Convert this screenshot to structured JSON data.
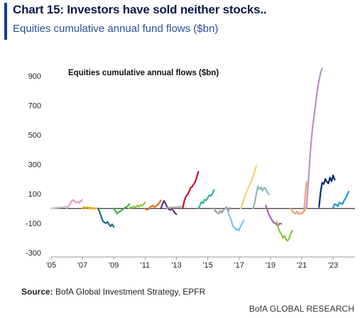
{
  "header": {
    "title": "Chart 15: Investors have sold neither stocks..",
    "subtitle": "Equities cumulative annual fund flows ($bn)"
  },
  "footer": {
    "source_label": "Source:",
    "source_text": "BofA Global Investment Strategy, EPFR",
    "brand": "BofA GLOBAL RESEARCH"
  },
  "colors": {
    "accent": "#0d3f99",
    "zero_line": "#222222"
  },
  "chart_data": {
    "type": "line",
    "title": "Equities cumulative annual flows ($bn)",
    "xlabel": "",
    "ylabel": "",
    "xlim": [
      2005,
      2024.4
    ],
    "ylim": [
      -300,
      1000
    ],
    "x_ticks": [
      "'05",
      "'07",
      "'09",
      "'11",
      "'13",
      "'15",
      "'17",
      "'19",
      "'21",
      "'23"
    ],
    "x_tick_values": [
      2005,
      2007,
      2009,
      2011,
      2013,
      2015,
      2017,
      2019,
      2021,
      2023
    ],
    "y_ticks": [
      -300,
      -100,
      100,
      300,
      500,
      700,
      900
    ],
    "grid": false,
    "series": [
      {
        "color": "#c8c8c8",
        "points": [
          [
            2005.0,
            0
          ],
          [
            2005.1,
            3
          ],
          [
            2005.2,
            2
          ],
          [
            2005.3,
            6
          ],
          [
            2005.4,
            4
          ],
          [
            2005.5,
            8
          ],
          [
            2005.6,
            5
          ],
          [
            2005.7,
            10
          ],
          [
            2005.8,
            9
          ],
          [
            2005.9,
            12
          ],
          [
            2006.0,
            8
          ]
        ]
      },
      {
        "color": "#e896c4",
        "points": [
          [
            2006.0,
            0
          ],
          [
            2006.1,
            15
          ],
          [
            2006.2,
            30
          ],
          [
            2006.3,
            48
          ],
          [
            2006.4,
            58
          ],
          [
            2006.5,
            50
          ],
          [
            2006.6,
            40
          ],
          [
            2006.7,
            45
          ],
          [
            2006.8,
            38
          ],
          [
            2006.9,
            52
          ],
          [
            2007.0,
            58
          ]
        ]
      },
      {
        "color": "#f0a800",
        "points": [
          [
            2007.0,
            0
          ],
          [
            2007.1,
            10
          ],
          [
            2007.2,
            3
          ],
          [
            2007.3,
            8
          ],
          [
            2007.4,
            2
          ],
          [
            2007.5,
            6
          ],
          [
            2007.6,
            0
          ],
          [
            2007.7,
            4
          ],
          [
            2007.8,
            -2
          ],
          [
            2007.9,
            2
          ],
          [
            2008.0,
            -2
          ]
        ]
      },
      {
        "color": "#1d6b7a",
        "points": [
          [
            2008.0,
            0
          ],
          [
            2008.1,
            -25
          ],
          [
            2008.2,
            -55
          ],
          [
            2008.3,
            -85
          ],
          [
            2008.4,
            -95
          ],
          [
            2008.5,
            -100
          ],
          [
            2008.6,
            -90
          ],
          [
            2008.7,
            -110
          ],
          [
            2008.8,
            -120
          ],
          [
            2008.9,
            -108
          ],
          [
            2009.0,
            -125
          ]
        ]
      },
      {
        "color": "#3cb44b",
        "points": [
          [
            2009.0,
            0
          ],
          [
            2009.1,
            -15
          ],
          [
            2009.2,
            -35
          ],
          [
            2009.3,
            -25
          ],
          [
            2009.4,
            -20
          ],
          [
            2009.5,
            -10
          ],
          [
            2009.6,
            -5
          ],
          [
            2009.7,
            5
          ],
          [
            2009.8,
            8
          ],
          [
            2009.9,
            18
          ],
          [
            2010.0,
            30
          ]
        ]
      },
      {
        "color": "#8cc63f",
        "points": [
          [
            2010.0,
            0
          ],
          [
            2010.1,
            10
          ],
          [
            2010.2,
            5
          ],
          [
            2010.3,
            15
          ],
          [
            2010.4,
            8
          ],
          [
            2010.5,
            20
          ],
          [
            2010.6,
            12
          ],
          [
            2010.7,
            25
          ],
          [
            2010.8,
            18
          ],
          [
            2010.9,
            30
          ],
          [
            2011.0,
            42
          ]
        ]
      },
      {
        "color": "#e86a10",
        "points": [
          [
            2011.0,
            0
          ],
          [
            2011.1,
            -8
          ],
          [
            2011.2,
            -5
          ],
          [
            2011.3,
            8
          ],
          [
            2011.4,
            15
          ],
          [
            2011.5,
            20
          ],
          [
            2011.6,
            10
          ],
          [
            2011.7,
            15
          ],
          [
            2011.8,
            25
          ],
          [
            2011.9,
            38
          ],
          [
            2012.0,
            55
          ]
        ]
      },
      {
        "color": "#6a2c8a",
        "points": [
          [
            2012.0,
            0
          ],
          [
            2012.1,
            25
          ],
          [
            2012.2,
            52
          ],
          [
            2012.3,
            35
          ],
          [
            2012.4,
            10
          ],
          [
            2012.5,
            -5
          ],
          [
            2012.6,
            -10
          ],
          [
            2012.7,
            -3
          ],
          [
            2012.8,
            -15
          ],
          [
            2012.9,
            -30
          ],
          [
            2013.0,
            -40
          ]
        ]
      },
      {
        "color": "#b0b0b0",
        "points": [
          [
            2012.4,
            0
          ],
          [
            2012.5,
            8
          ],
          [
            2012.6,
            3
          ],
          [
            2012.7,
            10
          ],
          [
            2012.8,
            5
          ],
          [
            2012.9,
            10
          ],
          [
            2013.0,
            7
          ],
          [
            2013.1,
            12
          ],
          [
            2013.2,
            8
          ],
          [
            2013.3,
            15
          ],
          [
            2013.4,
            8
          ]
        ]
      },
      {
        "color": "#c8102e",
        "points": [
          [
            2013.4,
            0
          ],
          [
            2013.5,
            50
          ],
          [
            2013.6,
            80
          ],
          [
            2013.7,
            95
          ],
          [
            2013.8,
            112
          ],
          [
            2013.9,
            140
          ],
          [
            2014.0,
            148
          ],
          [
            2014.1,
            165
          ],
          [
            2014.2,
            180
          ],
          [
            2014.3,
            215
          ],
          [
            2014.4,
            250
          ]
        ]
      },
      {
        "color": "#2bb5a0",
        "points": [
          [
            2014.4,
            0
          ],
          [
            2014.5,
            20
          ],
          [
            2014.6,
            45
          ],
          [
            2014.7,
            35
          ],
          [
            2014.8,
            60
          ],
          [
            2014.9,
            55
          ],
          [
            2015.0,
            72
          ],
          [
            2015.1,
            90
          ],
          [
            2015.2,
            85
          ],
          [
            2015.3,
            100
          ],
          [
            2015.4,
            125
          ]
        ]
      },
      {
        "color": "#9aa0a6",
        "points": [
          [
            2015.4,
            0
          ],
          [
            2015.5,
            -20
          ],
          [
            2015.6,
            -28
          ],
          [
            2015.7,
            -35
          ],
          [
            2015.8,
            -15
          ],
          [
            2015.9,
            -30
          ],
          [
            2016.0,
            -10
          ],
          [
            2016.1,
            0
          ],
          [
            2016.2,
            10
          ],
          [
            2016.3,
            -20
          ],
          [
            2016.4,
            5
          ]
        ]
      },
      {
        "color": "#7dc4e4",
        "points": [
          [
            2016.3,
            -30
          ],
          [
            2016.4,
            -55
          ],
          [
            2016.5,
            -80
          ],
          [
            2016.6,
            -120
          ],
          [
            2016.7,
            -130
          ],
          [
            2016.8,
            -145
          ],
          [
            2016.9,
            -140
          ],
          [
            2017.0,
            -150
          ],
          [
            2017.1,
            -120
          ],
          [
            2017.2,
            -100
          ],
          [
            2017.3,
            -80
          ]
        ]
      },
      {
        "color": "#f3d27a",
        "points": [
          [
            2017.1,
            0
          ],
          [
            2017.2,
            30
          ],
          [
            2017.3,
            60
          ],
          [
            2017.4,
            90
          ],
          [
            2017.5,
            120
          ],
          [
            2017.6,
            145
          ],
          [
            2017.7,
            165
          ],
          [
            2017.8,
            190
          ],
          [
            2017.9,
            220
          ],
          [
            2018.0,
            255
          ],
          [
            2018.1,
            290
          ]
        ]
      },
      {
        "color": "#8fb8b8",
        "points": [
          [
            2017.9,
            0
          ],
          [
            2018.0,
            40
          ],
          [
            2018.1,
            100
          ],
          [
            2018.2,
            150
          ],
          [
            2018.3,
            130
          ],
          [
            2018.4,
            145
          ],
          [
            2018.5,
            120
          ],
          [
            2018.6,
            140
          ],
          [
            2018.7,
            135
          ],
          [
            2018.8,
            110
          ],
          [
            2018.9,
            95
          ]
        ]
      },
      {
        "color": "#b05bb0",
        "points": [
          [
            2018.7,
            20
          ],
          [
            2018.8,
            -10
          ],
          [
            2018.9,
            -40
          ],
          [
            2019.0,
            -60
          ],
          [
            2019.1,
            -80
          ],
          [
            2019.2,
            -95
          ],
          [
            2019.3,
            -100
          ],
          [
            2019.4,
            -110
          ],
          [
            2019.5,
            -115
          ],
          [
            2019.6,
            -100
          ],
          [
            2019.7,
            -105
          ]
        ]
      },
      {
        "color": "#8cc63f",
        "points": [
          [
            2019.4,
            -90
          ],
          [
            2019.5,
            -130
          ],
          [
            2019.6,
            -160
          ],
          [
            2019.7,
            -175
          ],
          [
            2019.8,
            -200
          ],
          [
            2019.9,
            -185
          ],
          [
            2020.0,
            -210
          ],
          [
            2020.1,
            -220
          ],
          [
            2020.2,
            -200
          ],
          [
            2020.3,
            -170
          ],
          [
            2020.4,
            -150
          ]
        ]
      },
      {
        "color": "#f3a07a",
        "points": [
          [
            2020.3,
            0
          ],
          [
            2020.4,
            -15
          ],
          [
            2020.5,
            -30
          ],
          [
            2020.6,
            -35
          ],
          [
            2020.7,
            -20
          ],
          [
            2020.8,
            -40
          ],
          [
            2020.9,
            -30
          ],
          [
            2021.0,
            -35
          ],
          [
            2021.1,
            -25
          ],
          [
            2021.2,
            -10
          ],
          [
            2021.3,
            15
          ]
        ]
      },
      {
        "color": "#f3a07a",
        "points": [
          [
            2021.1,
            -25
          ],
          [
            2021.15,
            0
          ],
          [
            2021.2,
            60
          ],
          [
            2021.25,
            120
          ],
          [
            2021.3,
            180
          ]
        ]
      },
      {
        "color": "#b891c9",
        "points": [
          [
            2021.3,
            0
          ],
          [
            2021.4,
            150
          ],
          [
            2021.5,
            310
          ],
          [
            2021.6,
            450
          ],
          [
            2021.7,
            560
          ],
          [
            2021.8,
            640
          ],
          [
            2021.9,
            720
          ],
          [
            2022.0,
            810
          ],
          [
            2022.1,
            870
          ],
          [
            2022.2,
            920
          ],
          [
            2022.3,
            950
          ]
        ]
      },
      {
        "color": "#0b2a6e",
        "points": [
          [
            2022.1,
            10
          ],
          [
            2022.2,
            110
          ],
          [
            2022.3,
            175
          ],
          [
            2022.4,
            165
          ],
          [
            2022.5,
            200
          ],
          [
            2022.6,
            180
          ],
          [
            2022.7,
            170
          ],
          [
            2022.8,
            210
          ],
          [
            2022.9,
            185
          ],
          [
            2023.0,
            225
          ],
          [
            2023.1,
            195
          ]
        ]
      },
      {
        "color": "#1c9ad6",
        "points": [
          [
            2023.0,
            5
          ],
          [
            2023.1,
            30
          ],
          [
            2023.2,
            25
          ],
          [
            2023.3,
            15
          ],
          [
            2023.4,
            40
          ],
          [
            2023.5,
            35
          ],
          [
            2023.6,
            30
          ],
          [
            2023.7,
            55
          ],
          [
            2023.8,
            70
          ],
          [
            2023.9,
            95
          ],
          [
            2024.0,
            115
          ]
        ]
      }
    ]
  }
}
